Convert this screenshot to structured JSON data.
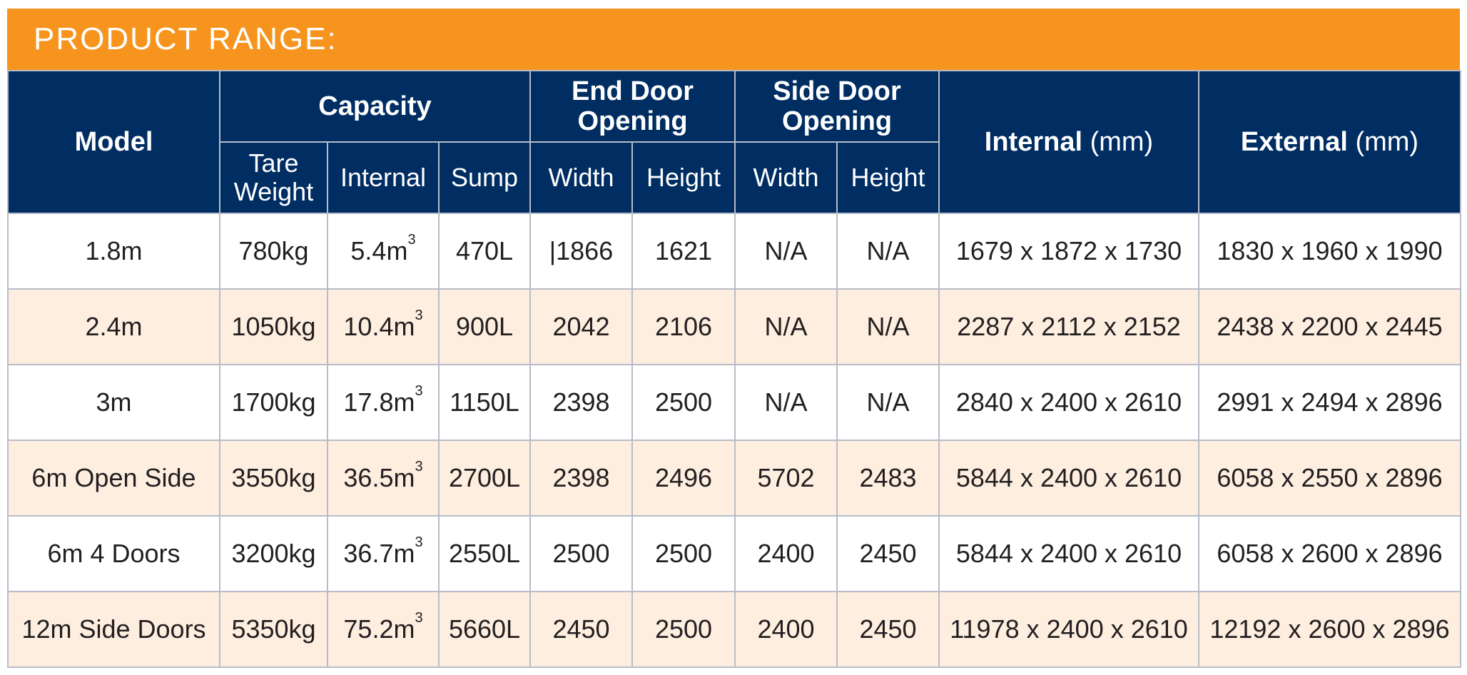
{
  "banner": {
    "title": "PRODUCT RANGE:"
  },
  "table": {
    "headers": {
      "model": "Model",
      "capacity": "Capacity",
      "end_door": "End Door Opening",
      "side_door": "Side Door Opening",
      "internal": "Internal",
      "internal_unit": "(mm)",
      "external": "External",
      "external_unit": "(mm)",
      "tare_weight": "Tare Weight",
      "cap_internal": "Internal",
      "sump": "Sump",
      "end_width": "Width",
      "end_height": "Height",
      "side_width": "Width",
      "side_height": "Height"
    },
    "rows": [
      {
        "model": "1.8m",
        "tare": "780kg",
        "cap_value": "5.4m",
        "cap_sup": "3",
        "sump": "470L",
        "end_width": "|1866",
        "end_height": "1621",
        "side_width": "N/A",
        "side_height": "N/A",
        "internal": "1679 x 1872 x 1730",
        "external": "1830 x 1960 x 1990"
      },
      {
        "model": "2.4m",
        "tare": "1050kg",
        "cap_value": "10.4m",
        "cap_sup": "3",
        "sump": "900L",
        "end_width": "2042",
        "end_height": "2106",
        "side_width": "N/A",
        "side_height": "N/A",
        "internal": "2287 x 2112 x 2152",
        "external": "2438 x 2200 x 2445"
      },
      {
        "model": "3m",
        "tare": "1700kg",
        "cap_value": "17.8m",
        "cap_sup": "3",
        "sump": "1150L",
        "end_width": "2398",
        "end_height": "2500",
        "side_width": "N/A",
        "side_height": "N/A",
        "internal": "2840 x 2400 x 2610",
        "external": "2991 x 2494 x 2896"
      },
      {
        "model": "6m Open Side",
        "tare": "3550kg",
        "cap_value": "36.5m",
        "cap_sup": "3",
        "sump": "2700L",
        "end_width": "2398",
        "end_height": "2496",
        "side_width": "5702",
        "side_height": "2483",
        "internal": "5844 x 2400 x 2610",
        "external": "6058 x 2550 x 2896"
      },
      {
        "model": "6m 4 Doors",
        "tare": "3200kg",
        "cap_value": "36.7m",
        "cap_sup": "3",
        "sump": "2550L",
        "end_width": "2500",
        "end_height": "2500",
        "side_width": "2400",
        "side_height": "2450",
        "internal": "5844 x 2400 x 2610",
        "external": "6058 x 2600 x 2896"
      },
      {
        "model": "12m Side Doors",
        "tare": "5350kg",
        "cap_value": "75.2m",
        "cap_sup": "3",
        "sump": "5660L",
        "end_width": "2450",
        "end_height": "2500",
        "side_width": "2400",
        "side_height": "2450",
        "internal": "11978 x 2400 x 2610",
        "external": "12192 x 2600 x 2896"
      }
    ]
  }
}
